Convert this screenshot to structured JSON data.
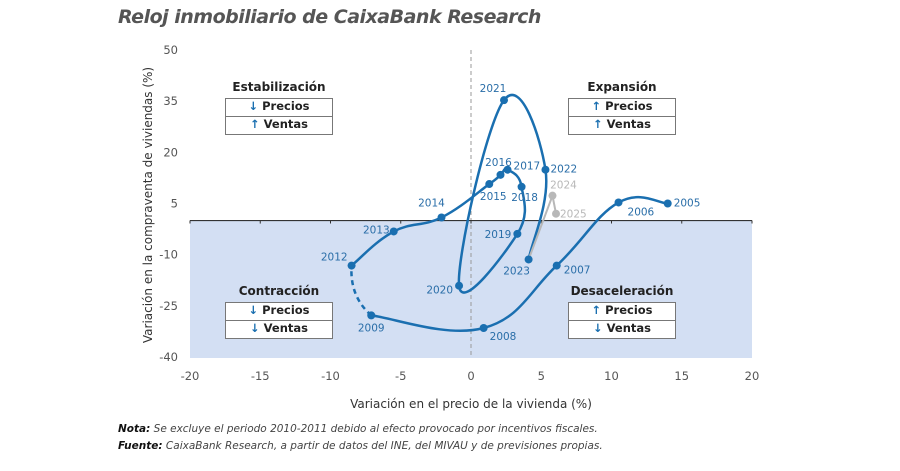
{
  "title": "Reloj inmobiliario de CaixaBank Research",
  "chart_data": {
    "type": "line",
    "title": "Reloj inmobiliario de CaixaBank Research",
    "xlabel": "Variación en el precio de la vivienda (%)",
    "ylabel": "Variación en la compraventa de viviendas (%)",
    "xlim": [
      -20,
      20
    ],
    "ylim": [
      -40,
      50
    ],
    "xticks": [
      -20,
      -15,
      -10,
      -5,
      0,
      5,
      10,
      15,
      20
    ],
    "yticks": [
      50,
      35,
      20,
      5,
      -10,
      -25,
      -40
    ],
    "grid": false,
    "colors": {
      "line": "#1a6fb0",
      "forecast": "#b8b8b8",
      "negative_zone": "#d3dff3",
      "label": "#2a6ea8"
    },
    "points": [
      {
        "year": "2005",
        "x": 14.0,
        "y": 5.0
      },
      {
        "year": "2006",
        "x": 10.5,
        "y": 5.3
      },
      {
        "year": "2007",
        "x": 6.1,
        "y": -13.2
      },
      {
        "year": "2008",
        "x": 0.9,
        "y": -31.5
      },
      {
        "year": "2009",
        "x": -7.1,
        "y": -27.8
      },
      {
        "year": "2012",
        "x": -8.5,
        "y": -13.2
      },
      {
        "year": "2013",
        "x": -5.5,
        "y": -3.2
      },
      {
        "year": "2014",
        "x": -2.1,
        "y": 0.9
      },
      {
        "year": "2015",
        "x": 1.3,
        "y": 10.7
      },
      {
        "year": "2016",
        "x": 2.1,
        "y": 13.4
      },
      {
        "year": "2017",
        "x": 2.6,
        "y": 14.9
      },
      {
        "year": "2018",
        "x": 3.6,
        "y": 9.9
      },
      {
        "year": "2019",
        "x": 3.3,
        "y": -3.9
      },
      {
        "year": "2020",
        "x": -0.85,
        "y": -19.1
      },
      {
        "year": "2021",
        "x": 2.35,
        "y": 35.3
      },
      {
        "year": "2022",
        "x": 5.3,
        "y": 14.9
      },
      {
        "year": "2023",
        "x": 4.1,
        "y": -11.4
      },
      {
        "year": "2024",
        "x": 5.8,
        "y": 7.3,
        "forecast": true
      },
      {
        "year": "2025",
        "x": 6.05,
        "y": 2.0,
        "forecast": true
      }
    ],
    "dashed_segment": [
      "2009",
      "2012"
    ]
  },
  "quadrants": {
    "stabilization": {
      "title": "Estabilización",
      "rows": [
        {
          "arrow": "↓",
          "label": "Precios"
        },
        {
          "arrow": "↑",
          "label": "Ventas"
        }
      ]
    },
    "expansion": {
      "title": "Expansión",
      "rows": [
        {
          "arrow": "↑",
          "label": "Precios"
        },
        {
          "arrow": "↑",
          "label": "Ventas"
        }
      ]
    },
    "contraction": {
      "title": "Contracción",
      "rows": [
        {
          "arrow": "↓",
          "label": "Precios"
        },
        {
          "arrow": "↓",
          "label": "Ventas"
        }
      ]
    },
    "deceleration": {
      "title": "Desaceleración",
      "rows": [
        {
          "arrow": "↑",
          "label": "Precios"
        },
        {
          "arrow": "↓",
          "label": "Ventas"
        }
      ]
    }
  },
  "notes": {
    "nota_label": "Nota:",
    "nota_text": " Se excluye el periodo 2010-2011 debido al efecto provocado por incentivos fiscales.",
    "fuente_label": "Fuente:",
    "fuente_text": " CaixaBank Research, a partir de datos del INE, del MIVAU y de previsiones propias."
  }
}
